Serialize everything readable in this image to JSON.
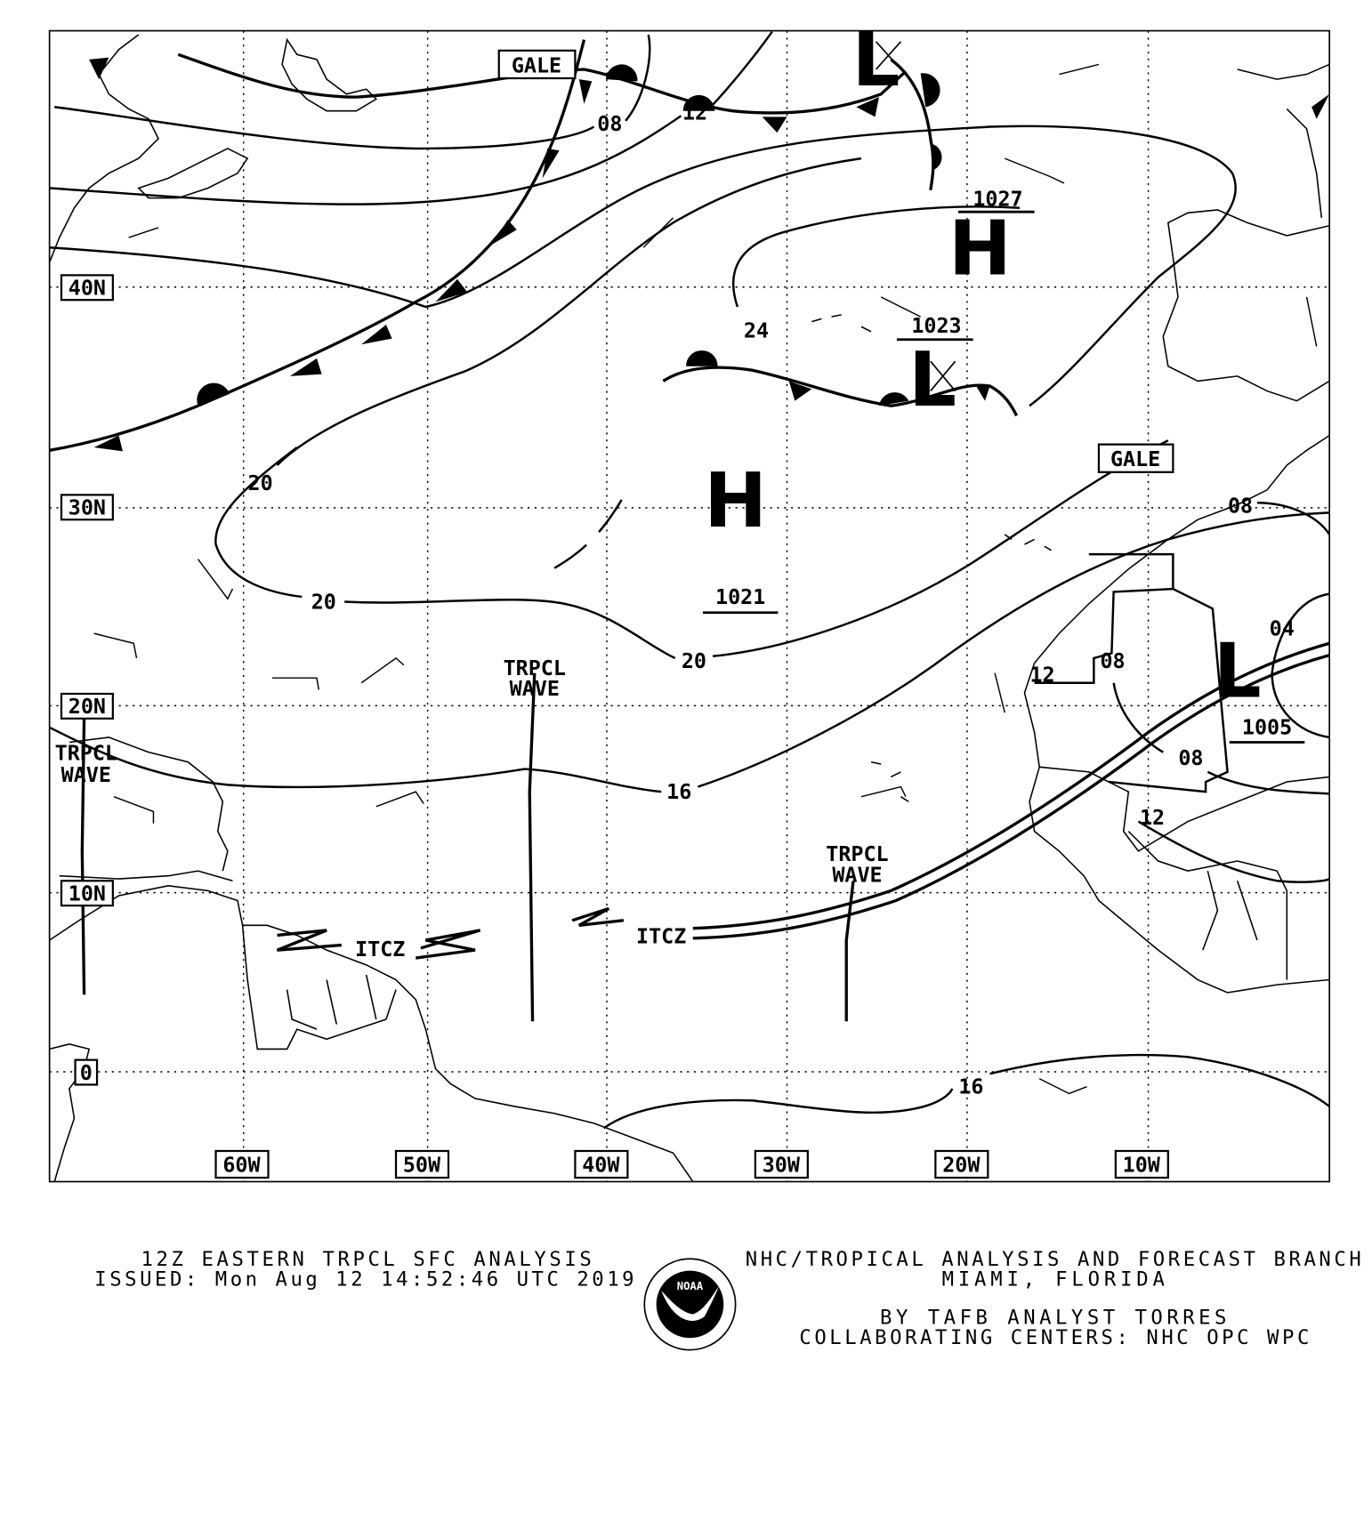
{
  "map": {
    "grid_labels_lat": [
      "40N",
      "30N",
      "20N",
      "10N",
      "0"
    ],
    "grid_labels_lon": [
      "60W",
      "50W",
      "40W",
      "30W",
      "20W",
      "10W"
    ],
    "gale_labels": [
      "GALE",
      "GALE"
    ],
    "centers": [
      {
        "type": "H",
        "pressure": "1027"
      },
      {
        "type": "L",
        "pressure": "1023"
      },
      {
        "type": "H",
        "pressure": "1021"
      },
      {
        "type": "L",
        "pressure": "1005"
      },
      {
        "type": "L",
        "pressure": ""
      }
    ],
    "isobar_labels": [
      "08",
      "12",
      "24",
      "20",
      "20",
      "20",
      "16",
      "16",
      "08",
      "04",
      "08",
      "08",
      "12",
      "12"
    ],
    "tropical_waves": [
      {
        "line1": "TRPCL",
        "line2": "WAVE"
      },
      {
        "line1": "TRPCL",
        "line2": "WAVE"
      },
      {
        "line1": "TRPCL",
        "line2": "WAVE"
      }
    ],
    "itcz_labels": [
      "ITCZ",
      "ITCZ"
    ]
  },
  "footer": {
    "title": "12Z EASTERN TRPCL SFC ANALYSIS",
    "issued": "ISSUED: Mon Aug 12 14:52:46 UTC 2019",
    "branch": "NHC/TROPICAL ANALYSIS AND FORECAST BRANCH",
    "location": "MIAMI,  FLORIDA",
    "analyst": "BY TAFB ANALYST  TORRES",
    "centers": "COLLABORATING CENTERS: NHC OPC WPC",
    "logo_text": "NOAA"
  }
}
